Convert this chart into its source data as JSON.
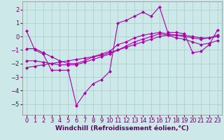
{
  "xlabel": "Windchill (Refroidissement éolien,°C)",
  "x": [
    0,
    1,
    2,
    3,
    4,
    5,
    6,
    7,
    8,
    9,
    10,
    11,
    12,
    13,
    14,
    15,
    16,
    17,
    18,
    19,
    20,
    21,
    22,
    23
  ],
  "line1_y": [
    0.4,
    -1.0,
    -1.3,
    -2.5,
    -2.5,
    -2.5,
    -5.1,
    -4.2,
    -3.5,
    -3.2,
    -2.6,
    1.0,
    1.2,
    1.5,
    1.8,
    1.5,
    2.2,
    0.3,
    0.3,
    0.2,
    -1.2,
    -1.1,
    -0.6,
    0.5
  ],
  "line2_y": [
    -0.9,
    -0.9,
    -1.2,
    -1.5,
    -1.8,
    -2.0,
    -2.0,
    -1.8,
    -1.5,
    -1.3,
    -1.1,
    -0.6,
    -0.4,
    -0.1,
    0.1,
    0.2,
    0.3,
    0.2,
    0.1,
    0.0,
    -0.1,
    -0.2,
    -0.1,
    0.1
  ],
  "line3_y": [
    -1.8,
    -1.8,
    -1.9,
    -2.0,
    -2.1,
    -2.1,
    -2.1,
    -1.9,
    -1.7,
    -1.5,
    -1.3,
    -1.0,
    -0.7,
    -0.4,
    -0.2,
    0.0,
    0.2,
    0.1,
    -0.1,
    -0.2,
    -0.4,
    -0.6,
    -0.5,
    -0.3
  ],
  "line4_y": [
    -2.3,
    -2.2,
    -2.1,
    -2.0,
    -1.9,
    -1.8,
    -1.7,
    -1.6,
    -1.5,
    -1.4,
    -1.2,
    -1.0,
    -0.8,
    -0.6,
    -0.4,
    -0.2,
    0.0,
    0.1,
    0.1,
    0.1,
    0.0,
    -0.1,
    -0.1,
    0.0
  ],
  "bg_color": "#cce8e8",
  "grid_color": "#aacccc",
  "line_color": "#aa00aa",
  "ylim": [
    -5.8,
    2.6
  ],
  "xlim": [
    -0.5,
    23.5
  ],
  "yticks": [
    -5,
    -4,
    -3,
    -2,
    -1,
    0,
    1,
    2
  ],
  "xticks": [
    0,
    1,
    2,
    3,
    4,
    5,
    6,
    7,
    8,
    9,
    10,
    11,
    12,
    13,
    14,
    15,
    16,
    17,
    18,
    19,
    20,
    21,
    22,
    23
  ],
  "marker": "D",
  "marker_size": 2.5,
  "line_width": 0.8,
  "xlabel_fontsize": 6.5,
  "tick_fontsize": 6,
  "label_color": "#660066"
}
